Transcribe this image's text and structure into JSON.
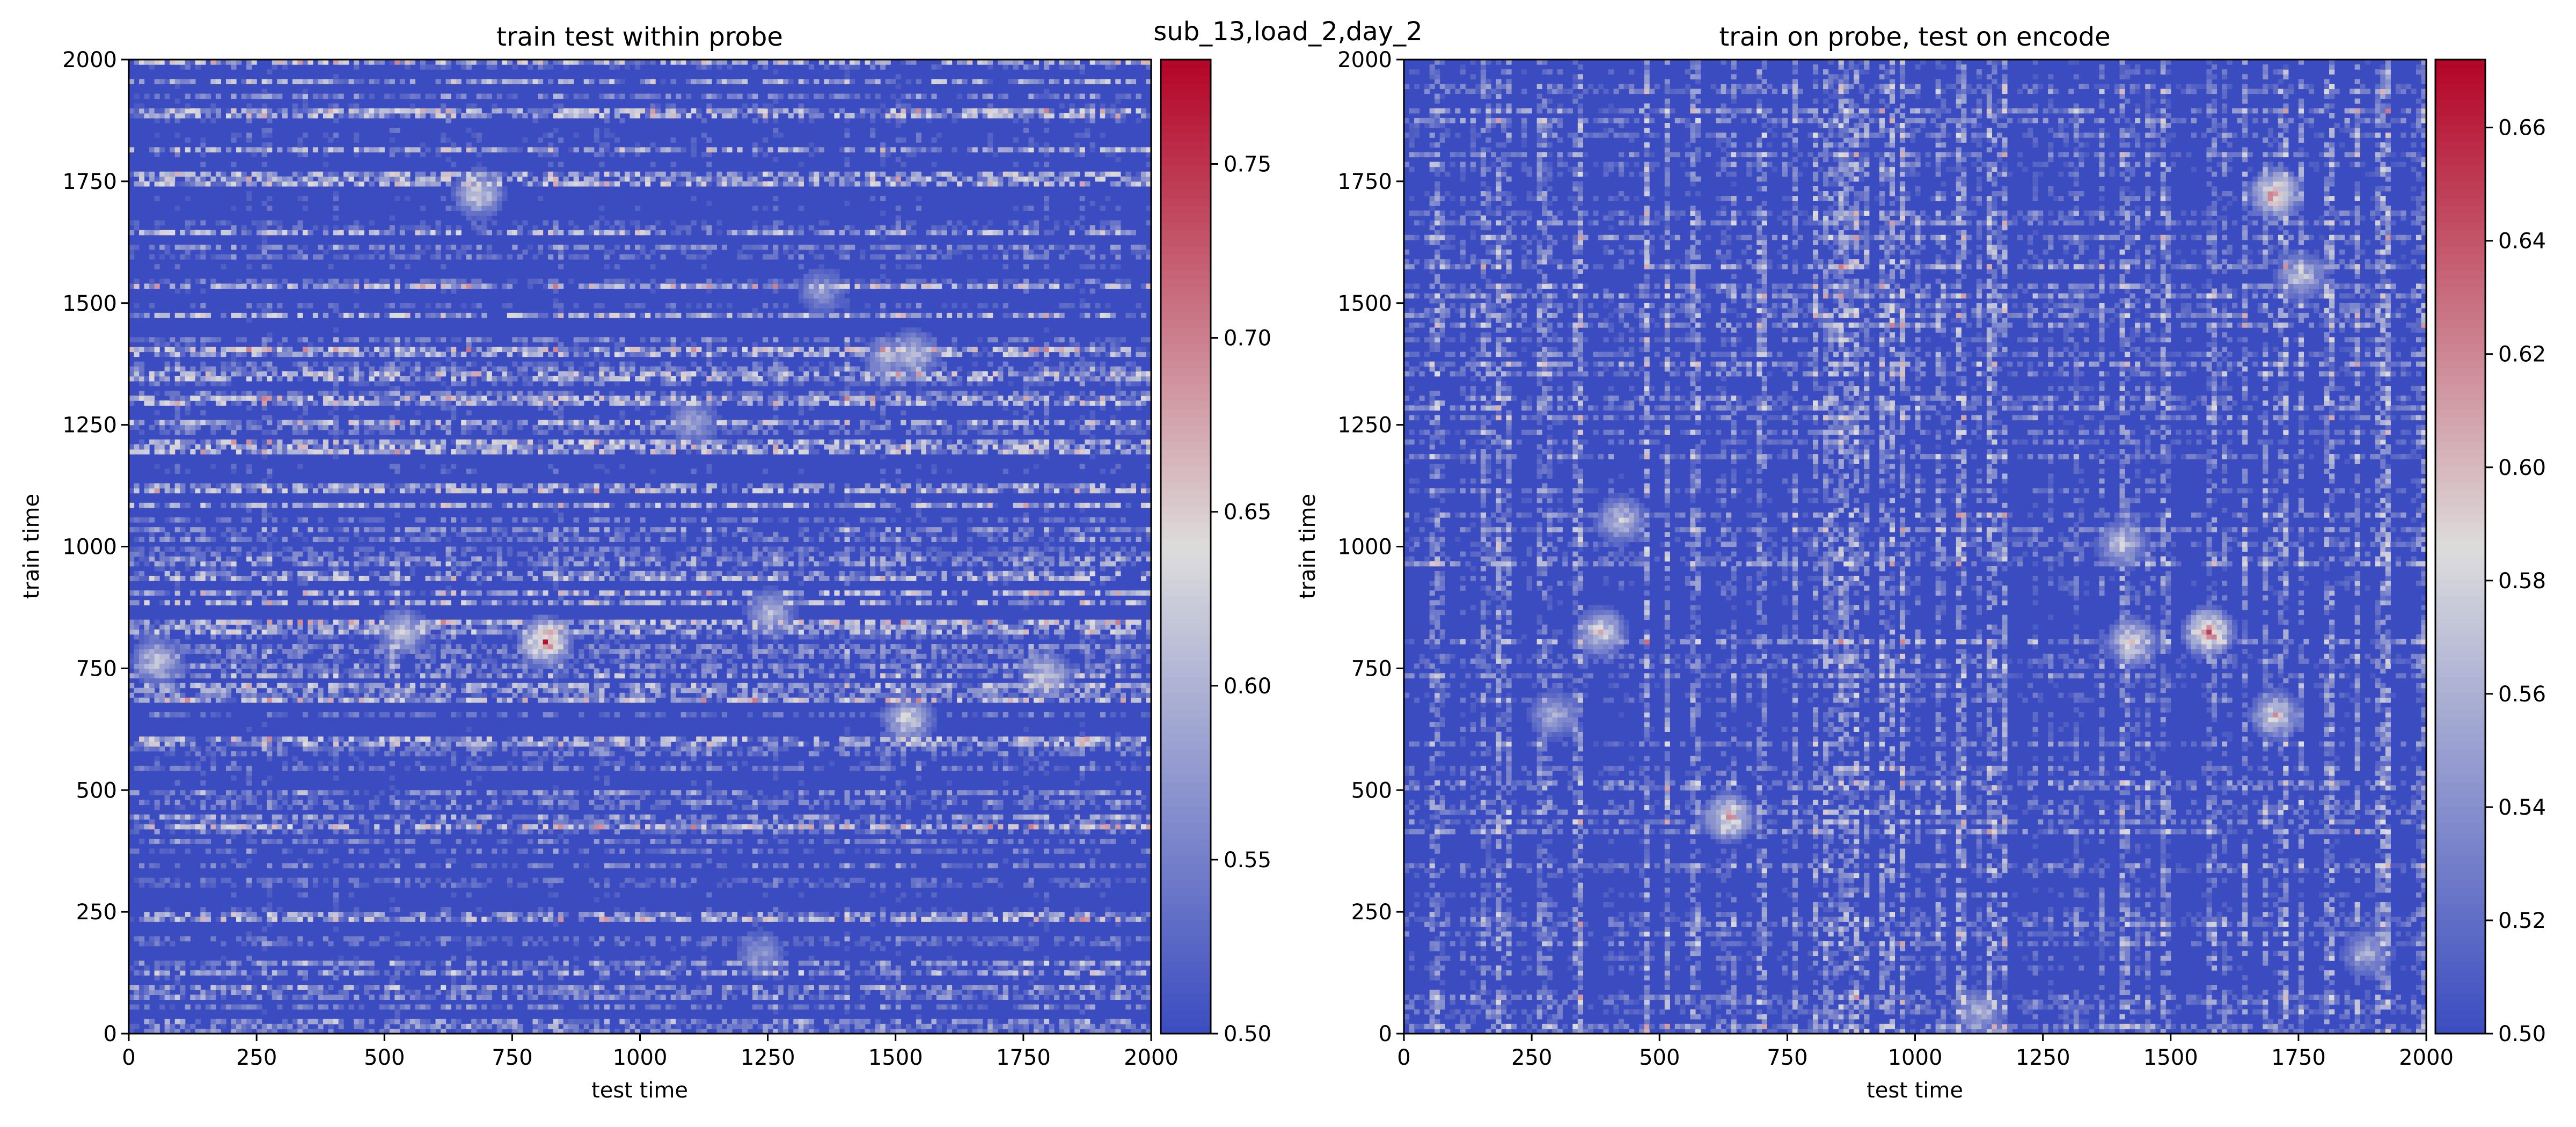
{
  "figure": {
    "suptitle": "sub_13,load_2,day_2"
  },
  "chart_data": [
    {
      "type": "heatmap",
      "title": "train test within probe",
      "xlabel": "test time",
      "ylabel": "train time",
      "xlim": [
        0,
        2000
      ],
      "ylim": [
        0,
        2000
      ],
      "xticks": [
        "0",
        "250",
        "500",
        "750",
        "1000",
        "1250",
        "1500",
        "1750",
        "2000"
      ],
      "yticks": [
        "0",
        "250",
        "500",
        "750",
        "1000",
        "1250",
        "1500",
        "1750",
        "2000"
      ],
      "colormap": "coolwarm",
      "colors": {
        "low": "#3b4cc0",
        "mid": "#dddcdc",
        "high": "#b40426"
      },
      "clim": [
        0.5,
        0.78
      ],
      "colorbar_ticks": [
        "0.50",
        "0.55",
        "0.60",
        "0.65",
        "0.70",
        "0.75"
      ],
      "grid_size": 200,
      "background_value": 0.5,
      "hotspots": [
        {
          "x": 810,
          "y": 800,
          "value": 0.78
        },
        {
          "x": 1530,
          "y": 1390,
          "value": 0.66
        },
        {
          "x": 1790,
          "y": 730,
          "value": 0.68
        },
        {
          "x": 530,
          "y": 820,
          "value": 0.66
        },
        {
          "x": 1250,
          "y": 860,
          "value": 0.64
        },
        {
          "x": 1480,
          "y": 1380,
          "value": 0.62
        },
        {
          "x": 680,
          "y": 1720,
          "value": 0.68
        },
        {
          "x": 1100,
          "y": 1250,
          "value": 0.62
        },
        {
          "x": 1520,
          "y": 640,
          "value": 0.68
        },
        {
          "x": 50,
          "y": 760,
          "value": 0.67
        },
        {
          "x": 1230,
          "y": 160,
          "value": 0.6
        },
        {
          "x": 1350,
          "y": 1520,
          "value": 0.6
        }
      ]
    },
    {
      "type": "heatmap",
      "title": "train on probe, test on encode",
      "xlabel": "test time",
      "ylabel": "train time",
      "xlim": [
        0,
        2000
      ],
      "ylim": [
        0,
        2000
      ],
      "xticks": [
        "0",
        "250",
        "500",
        "750",
        "1000",
        "1250",
        "1500",
        "1750",
        "2000"
      ],
      "yticks": [
        "0",
        "250",
        "500",
        "750",
        "1000",
        "1250",
        "1500",
        "1750",
        "2000"
      ],
      "colormap": "coolwarm",
      "colors": {
        "low": "#3b4cc0",
        "mid": "#dddcdc",
        "high": "#b40426"
      },
      "clim": [
        0.5,
        0.672
      ],
      "colorbar_ticks": [
        "0.50",
        "0.52",
        "0.54",
        "0.56",
        "0.58",
        "0.60",
        "0.62",
        "0.64",
        "0.66"
      ],
      "grid_size": 200,
      "background_value": 0.5,
      "hotspots": [
        {
          "x": 1570,
          "y": 820,
          "value": 0.672
        },
        {
          "x": 1700,
          "y": 1720,
          "value": 0.66
        },
        {
          "x": 1420,
          "y": 800,
          "value": 0.62
        },
        {
          "x": 630,
          "y": 440,
          "value": 0.64
        },
        {
          "x": 420,
          "y": 1050,
          "value": 0.6
        },
        {
          "x": 1700,
          "y": 650,
          "value": 0.62
        },
        {
          "x": 380,
          "y": 820,
          "value": 0.62
        },
        {
          "x": 1750,
          "y": 1550,
          "value": 0.6
        },
        {
          "x": 1400,
          "y": 1000,
          "value": 0.6
        },
        {
          "x": 290,
          "y": 650,
          "value": 0.58
        },
        {
          "x": 1880,
          "y": 160,
          "value": 0.58
        },
        {
          "x": 1120,
          "y": 40,
          "value": 0.58
        }
      ]
    }
  ]
}
